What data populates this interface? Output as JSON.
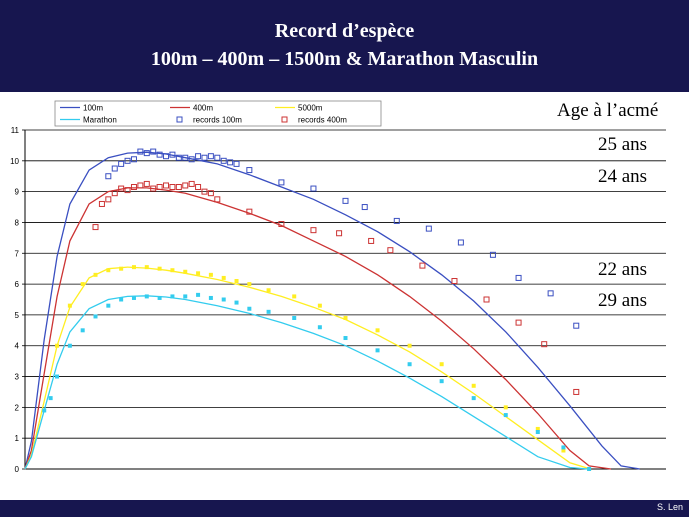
{
  "header": {
    "title_line1": "Record d’espèce",
    "title_line2": "100m – 400m – 1500m & Marathon Masculin"
  },
  "footer": {
    "credit": "S. Len"
  },
  "colors": {
    "header_bg": "#17164f",
    "100m": "#3a4fc1",
    "400m": "#cc3333",
    "5000m": "#ffee22",
    "marathon": "#33ccee"
  },
  "chart_data": {
    "type": "scatter",
    "title": "",
    "xlabel": "",
    "ylabel": "",
    "ylim": [
      0,
      11
    ],
    "yticks": [
      0,
      1,
      2,
      3,
      4,
      5,
      6,
      7,
      8,
      9,
      10,
      11
    ],
    "xlim": [
      0,
      100
    ],
    "grid": true,
    "legend_position": "top-left",
    "legend": [
      "100m",
      "400m",
      "5000m",
      "Marathon",
      "records 100m",
      "records 400m"
    ],
    "annotations": {
      "heading": "Age à l’acmé",
      "labels": [
        "25 ans",
        "24 ans",
        "22 ans",
        "29 ans"
      ]
    },
    "series": [
      {
        "name": "100m",
        "kind": "line",
        "color": "#3a4fc1",
        "x": [
          0,
          1,
          3,
          5,
          7,
          10,
          13,
          16,
          19,
          22,
          25,
          30,
          35,
          40,
          45,
          50,
          55,
          60,
          65,
          70,
          75,
          80,
          85,
          90,
          93,
          95.9
        ],
        "y": [
          0,
          0.9,
          4.2,
          6.9,
          8.6,
          9.7,
          10.1,
          10.25,
          10.28,
          10.22,
          10.1,
          9.9,
          9.55,
          9.15,
          8.75,
          8.25,
          7.7,
          7.05,
          6.3,
          5.45,
          4.45,
          3.3,
          2.05,
          0.75,
          0.1,
          0
        ]
      },
      {
        "name": "400m",
        "kind": "line",
        "color": "#cc3333",
        "x": [
          0,
          1,
          3,
          5,
          7,
          10,
          13,
          16,
          19,
          22,
          25,
          30,
          35,
          40,
          45,
          50,
          55,
          60,
          65,
          70,
          75,
          80,
          85,
          88,
          91.4
        ],
        "y": [
          0,
          0.6,
          3.1,
          5.6,
          7.4,
          8.6,
          9.0,
          9.12,
          9.12,
          9.05,
          8.95,
          8.65,
          8.3,
          7.9,
          7.4,
          6.9,
          6.3,
          5.6,
          4.8,
          3.9,
          2.9,
          1.8,
          0.6,
          0.1,
          0
        ]
      },
      {
        "name": "5000m",
        "kind": "line",
        "color": "#ffee22",
        "x": [
          0,
          1,
          3,
          5,
          7,
          10,
          13,
          16,
          19,
          22,
          25,
          30,
          35,
          40,
          45,
          50,
          55,
          60,
          65,
          70,
          75,
          80,
          85,
          88.2
        ],
        "y": [
          0,
          0.45,
          2.2,
          4.0,
          5.25,
          6.2,
          6.5,
          6.55,
          6.52,
          6.45,
          6.35,
          6.15,
          5.9,
          5.6,
          5.25,
          4.85,
          4.35,
          3.8,
          3.15,
          2.45,
          1.7,
          0.95,
          0.2,
          0
        ]
      },
      {
        "name": "Marathon",
        "kind": "line",
        "color": "#33ccee",
        "x": [
          0,
          1,
          3,
          5,
          7,
          10,
          13,
          16,
          19,
          22,
          25,
          30,
          35,
          40,
          45,
          50,
          55,
          60,
          65,
          70,
          75,
          80,
          85,
          87.8
        ],
        "y": [
          0,
          0.4,
          1.9,
          3.4,
          4.45,
          5.2,
          5.5,
          5.6,
          5.62,
          5.58,
          5.5,
          5.3,
          5.05,
          4.75,
          4.4,
          4.0,
          3.5,
          2.95,
          2.35,
          1.7,
          1.05,
          0.4,
          0.05,
          0
        ]
      },
      {
        "name": "records 100m",
        "kind": "markers",
        "color": "#3a4fc1",
        "x": [
          13,
          14,
          15,
          16,
          17,
          18,
          19,
          20,
          21,
          22,
          23,
          24,
          25,
          26,
          27,
          28,
          29,
          30,
          31,
          32,
          33,
          35,
          40,
          45,
          50,
          53,
          58,
          63,
          68,
          73,
          77,
          82,
          86
        ],
        "y": [
          9.5,
          9.75,
          9.9,
          10.0,
          10.05,
          10.3,
          10.25,
          10.3,
          10.2,
          10.15,
          10.2,
          10.1,
          10.1,
          10.05,
          10.15,
          10.1,
          10.15,
          10.1,
          10.0,
          9.95,
          9.9,
          9.7,
          9.3,
          9.1,
          8.7,
          8.5,
          8.05,
          7.8,
          7.35,
          6.95,
          6.2,
          5.7,
          4.65
        ]
      },
      {
        "name": "records 400m",
        "kind": "markers",
        "color": "#cc3333",
        "x": [
          11,
          12,
          13,
          14,
          15,
          16,
          17,
          18,
          19,
          20,
          21,
          22,
          23,
          24,
          25,
          26,
          27,
          28,
          29,
          30,
          35,
          40,
          45,
          49,
          54,
          57,
          62,
          67,
          72,
          77,
          81,
          86
        ],
        "y": [
          7.85,
          8.6,
          8.75,
          8.95,
          9.1,
          9.05,
          9.15,
          9.2,
          9.25,
          9.1,
          9.15,
          9.2,
          9.15,
          9.15,
          9.2,
          9.25,
          9.15,
          9.0,
          8.95,
          8.75,
          8.35,
          7.95,
          7.75,
          7.65,
          7.4,
          7.1,
          6.6,
          6.1,
          5.5,
          4.75,
          4.05,
          2.5
        ]
      },
      {
        "name": "5000m records",
        "kind": "dots",
        "color": "#ffee22",
        "x": [
          5,
          7,
          9,
          11,
          13,
          15,
          17,
          19,
          21,
          23,
          25,
          27,
          29,
          31,
          33,
          35,
          38,
          42,
          46,
          50,
          55,
          60,
          65,
          70,
          75,
          80,
          84,
          88
        ],
        "y": [
          4.0,
          5.3,
          6.0,
          6.3,
          6.45,
          6.5,
          6.55,
          6.55,
          6.5,
          6.45,
          6.4,
          6.35,
          6.3,
          6.2,
          6.1,
          6.0,
          5.8,
          5.6,
          5.3,
          4.9,
          4.5,
          4.0,
          3.4,
          2.7,
          2.0,
          1.3,
          0.6,
          0.0
        ]
      },
      {
        "name": "Marathon records",
        "kind": "dots",
        "color": "#33ccee",
        "x": [
          3,
          4,
          5,
          7,
          9,
          11,
          13,
          15,
          17,
          19,
          21,
          23,
          25,
          27,
          29,
          31,
          33,
          35,
          38,
          42,
          46,
          50,
          55,
          60,
          65,
          70,
          75,
          80,
          84,
          88
        ],
        "y": [
          1.9,
          2.3,
          3.0,
          4.0,
          4.5,
          4.95,
          5.3,
          5.5,
          5.55,
          5.6,
          5.55,
          5.6,
          5.6,
          5.65,
          5.55,
          5.5,
          5.4,
          5.2,
          5.1,
          4.9,
          4.6,
          4.25,
          3.85,
          3.4,
          2.85,
          2.3,
          1.75,
          1.2,
          0.7,
          0.0
        ]
      }
    ]
  }
}
